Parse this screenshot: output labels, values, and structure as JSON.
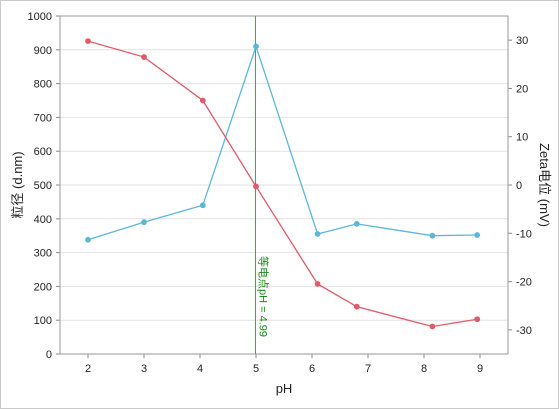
{
  "chart_data": {
    "type": "line",
    "x_label": "pH",
    "y_left_label": "粒径 (d.nm)",
    "y_right_label": "Zeta电位 (mV)",
    "x_ticks": [
      "2",
      "3",
      "4",
      "5",
      "6",
      "7",
      "8",
      "9"
    ],
    "y_left_ticks": [
      "0",
      "100",
      "200",
      "300",
      "400",
      "500",
      "600",
      "700",
      "800",
      "900",
      "1000"
    ],
    "y_right_ticks": [
      "30",
      "20",
      "10",
      "0",
      "-10",
      "-20",
      "-30"
    ],
    "x_range": [
      1.5,
      9.5
    ],
    "y_left_range": [
      0,
      1000
    ],
    "y_right_range": [
      -35,
      35
    ],
    "grid": "horizontal",
    "series": [
      {
        "axis": "left",
        "color": "#5bb8d6",
        "x": [
          2.0,
          3.0,
          4.05,
          5.0,
          6.1,
          6.8,
          8.15,
          8.95
        ],
        "y": [
          338,
          390,
          440,
          910,
          355,
          385,
          350,
          352
        ]
      },
      {
        "axis": "right",
        "color": "#e05a68",
        "x": [
          2.0,
          3.0,
          4.05,
          5.0,
          6.1,
          6.8,
          8.15,
          8.95
        ],
        "y": [
          29.8,
          26.5,
          17.5,
          -0.3,
          -20.5,
          -25.2,
          -29.3,
          -27.8
        ]
      }
    ],
    "annotation": {
      "text": "等电点pH = 4.99",
      "x": 4.99,
      "color": "#2a9a2a"
    }
  }
}
